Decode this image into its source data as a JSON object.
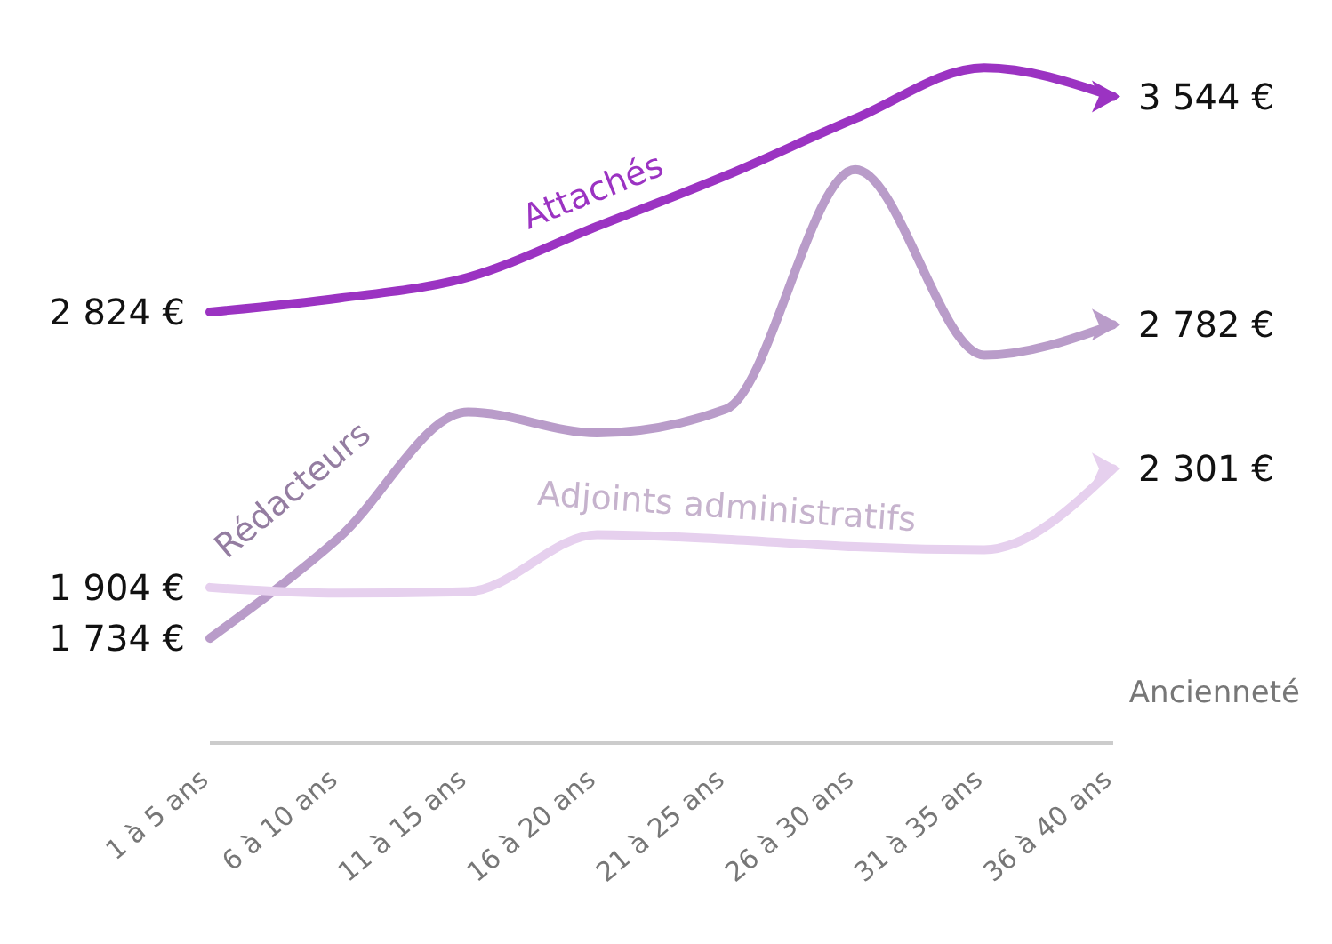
{
  "chart_data": {
    "type": "line",
    "xlabel": "Ancienneté",
    "categories": [
      "1 à 5 ans",
      "6 à 10 ans",
      "11 à 15 ans",
      "16 à 20 ans",
      "21 à 25 ans",
      "26 à 30 ans",
      "31 à 35 ans",
      "36 à 40 ans"
    ],
    "series": [
      {
        "name": "Attachés",
        "color": "#9b33c2",
        "values": [
          2824,
          2870,
          2940,
          3110,
          3280,
          3470,
          3640,
          3544
        ],
        "value_labels": [
          "2 824 €",
          null,
          null,
          null,
          null,
          null,
          null,
          "3 544 €"
        ]
      },
      {
        "name": "Rédacteurs",
        "color": "#b99cc9",
        "values": [
          1734,
          2070,
          2490,
          2420,
          2500,
          3300,
          2680,
          2782
        ],
        "value_labels": [
          "1 734 €",
          null,
          null,
          null,
          null,
          null,
          null,
          "2 782 €"
        ]
      },
      {
        "name": "Adjoints administratifs",
        "color": "#e6d0ee",
        "values": [
          1904,
          1885,
          1890,
          2080,
          2065,
          2040,
          2030,
          2301
        ],
        "value_labels": [
          "1 904 €",
          null,
          null,
          null,
          null,
          null,
          null,
          "2 301 €"
        ]
      }
    ],
    "marker": "none"
  }
}
